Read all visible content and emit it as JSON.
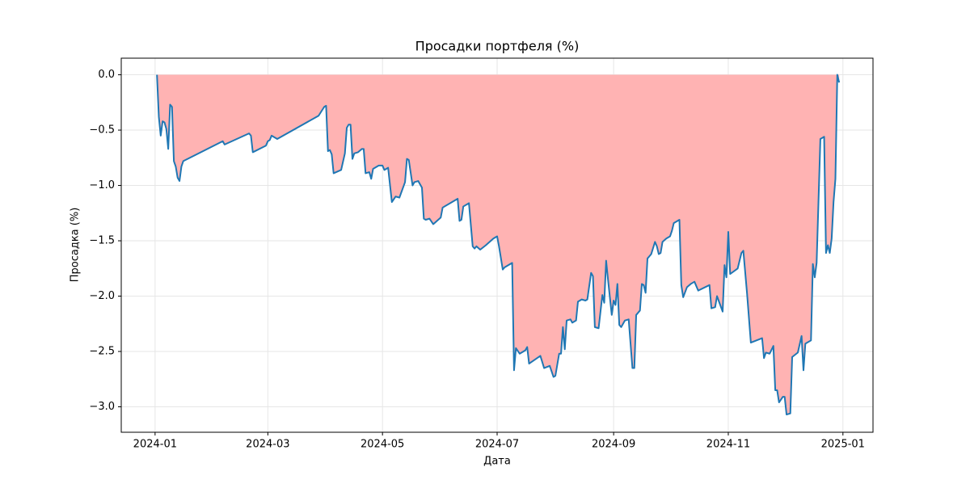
{
  "chart_data": {
    "type": "area",
    "title": "Просадки портфеля (%)",
    "x_label": "Дата",
    "y_label": "Просадка (%)",
    "color": "#1f77b4",
    "fill_color": "#ffb3b3",
    "grid": true,
    "xlim": [
      "2023-12-14",
      "2025-01-17"
    ],
    "ylim": [
      -3.23,
      0.15
    ],
    "xticks": [
      {
        "value": "2024-01-01",
        "label": "2024-01"
      },
      {
        "value": "2024-03-01",
        "label": "2024-03"
      },
      {
        "value": "2024-05-01",
        "label": "2024-05"
      },
      {
        "value": "2024-07-01",
        "label": "2024-07"
      },
      {
        "value": "2024-09-01",
        "label": "2024-09"
      },
      {
        "value": "2024-11-01",
        "label": "2024-11"
      },
      {
        "value": "2025-01-01",
        "label": "2025-01"
      }
    ],
    "yticks": [
      {
        "value": 0,
        "label": "0.0"
      },
      {
        "value": -0.5,
        "label": "−0.5"
      },
      {
        "value": -1,
        "label": "−1.0"
      },
      {
        "value": -1.5,
        "label": "−1.5"
      },
      {
        "value": -2,
        "label": "−2.0"
      },
      {
        "value": -2.5,
        "label": "−2.5"
      },
      {
        "value": -3,
        "label": "−3.0"
      }
    ],
    "x": [
      "2024-01-02",
      "2024-01-03",
      "2024-01-04",
      "2024-01-05",
      "2024-01-06",
      "2024-01-07",
      "2024-01-08",
      "2024-01-09",
      "2024-01-10",
      "2024-01-11",
      "2024-01-12",
      "2024-01-13",
      "2024-01-14",
      "2024-01-15",
      "2024-01-16",
      "2024-02-06",
      "2024-02-07",
      "2024-02-20",
      "2024-02-21",
      "2024-02-22",
      "2024-02-29",
      "2024-03-01",
      "2024-03-02",
      "2024-03-03",
      "2024-03-06",
      "2024-03-28",
      "2024-03-31",
      "2024-04-01",
      "2024-04-02",
      "2024-04-03",
      "2024-04-04",
      "2024-04-05",
      "2024-04-09",
      "2024-04-11",
      "2024-04-12",
      "2024-04-13",
      "2024-04-14",
      "2024-04-15",
      "2024-04-16",
      "2024-04-18",
      "2024-04-20",
      "2024-04-21",
      "2024-04-22",
      "2024-04-24",
      "2024-04-25",
      "2024-04-26",
      "2024-04-29",
      "2024-05-01",
      "2024-05-02",
      "2024-05-04",
      "2024-05-06",
      "2024-05-08",
      "2024-05-10",
      "2024-05-13",
      "2024-05-14",
      "2024-05-15",
      "2024-05-17",
      "2024-05-18",
      "2024-05-20",
      "2024-05-22",
      "2024-05-23",
      "2024-05-24",
      "2024-05-26",
      "2024-05-28",
      "2024-05-30",
      "2024-06-01",
      "2024-06-02",
      "2024-06-10",
      "2024-06-11",
      "2024-06-12",
      "2024-06-13",
      "2024-06-16",
      "2024-06-18",
      "2024-06-19",
      "2024-06-20",
      "2024-06-22",
      "2024-06-25",
      "2024-06-29",
      "2024-07-01",
      "2024-07-02",
      "2024-07-04",
      "2024-07-05",
      "2024-07-09",
      "2024-07-10",
      "2024-07-11",
      "2024-07-13",
      "2024-07-16",
      "2024-07-17",
      "2024-07-18",
      "2024-07-24",
      "2024-07-26",
      "2024-07-29",
      "2024-07-31",
      "2024-08-01",
      "2024-08-03",
      "2024-08-04",
      "2024-08-05",
      "2024-08-06",
      "2024-08-07",
      "2024-08-09",
      "2024-08-10",
      "2024-08-12",
      "2024-08-13",
      "2024-08-15",
      "2024-08-17",
      "2024-08-18",
      "2024-08-20",
      "2024-08-21",
      "2024-08-22",
      "2024-08-24",
      "2024-08-26",
      "2024-08-27",
      "2024-08-28",
      "2024-08-29",
      "2024-08-31",
      "2024-09-01",
      "2024-09-02",
      "2024-09-03",
      "2024-09-04",
      "2024-09-05",
      "2024-09-07",
      "2024-09-09",
      "2024-09-11",
      "2024-09-12",
      "2024-09-13",
      "2024-09-15",
      "2024-09-16",
      "2024-09-17",
      "2024-09-18",
      "2024-09-19",
      "2024-09-21",
      "2024-09-23",
      "2024-09-24",
      "2024-09-25",
      "2024-09-26",
      "2024-09-27",
      "2024-09-29",
      "2024-10-01",
      "2024-10-02",
      "2024-10-03",
      "2024-10-06",
      "2024-10-07",
      "2024-10-08",
      "2024-10-10",
      "2024-10-12",
      "2024-10-14",
      "2024-10-16",
      "2024-10-22",
      "2024-10-23",
      "2024-10-25",
      "2024-10-26",
      "2024-10-29",
      "2024-10-30",
      "2024-10-31",
      "2024-11-01",
      "2024-11-02",
      "2024-11-06",
      "2024-11-08",
      "2024-11-09",
      "2024-11-11",
      "2024-11-13",
      "2024-11-19",
      "2024-11-20",
      "2024-11-21",
      "2024-11-23",
      "2024-11-25",
      "2024-11-26",
      "2024-11-27",
      "2024-11-28",
      "2024-11-30",
      "2024-12-01",
      "2024-12-02",
      "2024-12-04",
      "2024-12-05",
      "2024-12-08",
      "2024-12-10",
      "2024-12-11",
      "2024-12-12",
      "2024-12-15",
      "2024-12-16",
      "2024-12-17",
      "2024-12-18",
      "2024-12-20",
      "2024-12-22",
      "2024-12-23",
      "2024-12-24",
      "2024-12-25",
      "2024-12-26",
      "2024-12-27",
      "2024-12-28",
      "2024-12-29",
      "2024-12-30"
    ],
    "values": [
      0,
      -0.38,
      -0.55,
      -0.42,
      -0.43,
      -0.49,
      -0.67,
      -0.27,
      -0.29,
      -0.78,
      -0.83,
      -0.93,
      -0.96,
      -0.83,
      -0.78,
      -0.6,
      -0.63,
      -0.53,
      -0.55,
      -0.7,
      -0.64,
      -0.6,
      -0.59,
      -0.55,
      -0.58,
      -0.37,
      -0.29,
      -0.28,
      -0.69,
      -0.68,
      -0.72,
      -0.89,
      -0.86,
      -0.71,
      -0.48,
      -0.45,
      -0.45,
      -0.76,
      -0.71,
      -0.7,
      -0.67,
      -0.67,
      -0.89,
      -0.88,
      -0.94,
      -0.85,
      -0.82,
      -0.82,
      -0.86,
      -0.84,
      -1.15,
      -1.1,
      -1.11,
      -0.97,
      -0.76,
      -0.77,
      -1.0,
      -0.97,
      -0.96,
      -1.02,
      -1.3,
      -1.31,
      -1.3,
      -1.35,
      -1.32,
      -1.29,
      -1.2,
      -1.12,
      -1.32,
      -1.31,
      -1.19,
      -1.16,
      -1.55,
      -1.57,
      -1.55,
      -1.58,
      -1.54,
      -1.48,
      -1.46,
      -1.55,
      -1.76,
      -1.74,
      -1.7,
      -2.67,
      -2.47,
      -2.52,
      -2.49,
      -2.46,
      -2.61,
      -2.54,
      -2.65,
      -2.63,
      -2.73,
      -2.72,
      -2.52,
      -2.52,
      -2.28,
      -2.48,
      -2.22,
      -2.21,
      -2.24,
      -2.22,
      -2.05,
      -2.03,
      -2.04,
      -2.03,
      -1.79,
      -1.82,
      -2.28,
      -2.29,
      -1.99,
      -2.06,
      -1.68,
      -1.85,
      -2.17,
      -2.04,
      -2.08,
      -1.89,
      -2.26,
      -2.28,
      -2.22,
      -2.21,
      -2.65,
      -2.65,
      -2.17,
      -2.13,
      -1.89,
      -1.9,
      -1.97,
      -1.66,
      -1.62,
      -1.51,
      -1.55,
      -1.62,
      -1.61,
      -1.51,
      -1.48,
      -1.46,
      -1.41,
      -1.34,
      -1.31,
      -1.9,
      -2.01,
      -1.92,
      -1.89,
      -1.87,
      -1.95,
      -1.9,
      -2.11,
      -2.1,
      -2.0,
      -2.14,
      -1.72,
      -1.83,
      -1.42,
      -1.8,
      -1.75,
      -1.61,
      -1.59,
      -1.98,
      -2.42,
      -2.38,
      -2.56,
      -2.51,
      -2.52,
      -2.45,
      -2.85,
      -2.85,
      -2.96,
      -2.91,
      -2.91,
      -3.07,
      -3.06,
      -2.55,
      -2.51,
      -2.36,
      -2.67,
      -2.43,
      -2.4,
      -1.71,
      -1.83,
      -1.7,
      -0.58,
      -0.56,
      -1.61,
      -1.54,
      -1.61,
      -1.48,
      -1.15,
      -0.94,
      0,
      -0.07
    ]
  }
}
